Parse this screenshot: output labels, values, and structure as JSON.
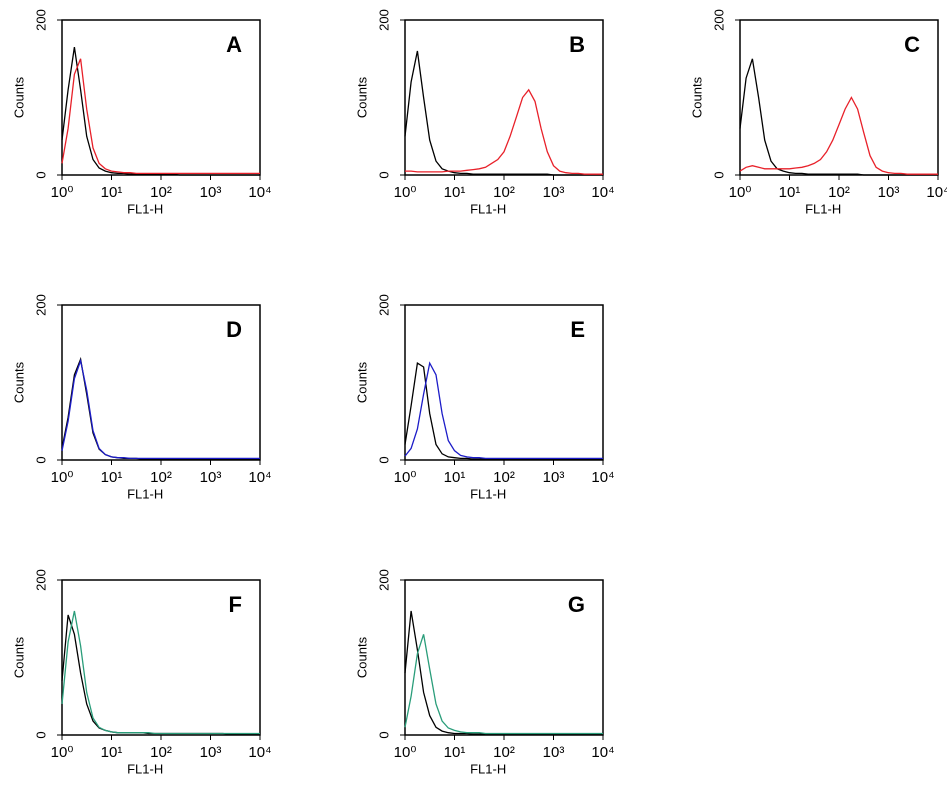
{
  "chart_data": [
    {
      "type": "line",
      "title": "A",
      "xlabel": "FL1-H",
      "ylabel": "Counts",
      "xscale": "log",
      "xlim": [
        1,
        10000
      ],
      "ylim": [
        0,
        200
      ],
      "xticks": [
        {
          "value": 1,
          "label": "10⁰"
        },
        {
          "value": 10,
          "label": "10¹"
        },
        {
          "value": 100,
          "label": "10²"
        },
        {
          "value": 1000,
          "label": "10³"
        },
        {
          "value": 10000,
          "label": "10⁴"
        }
      ],
      "yticks": [
        0,
        200
      ],
      "x": [
        1,
        1.33,
        1.78,
        2.37,
        3.16,
        4.22,
        5.62,
        7.5,
        10,
        13.3,
        17.8,
        23.7,
        31.6,
        42.2,
        56.2,
        75,
        100,
        133,
        178,
        237,
        316,
        422,
        562,
        750,
        1000,
        1334,
        1778,
        2371,
        3162,
        4217,
        5623,
        7499,
        10000
      ],
      "series": [
        {
          "color": "#000000",
          "values": [
            45,
            110,
            165,
            110,
            50,
            20,
            9,
            5,
            3,
            2,
            2,
            1,
            1,
            1,
            1,
            1,
            1,
            1,
            1,
            0,
            0,
            0,
            0,
            0,
            0,
            0,
            0,
            0,
            0,
            0,
            0,
            0,
            0
          ]
        },
        {
          "color": "#e8212a",
          "values": [
            15,
            60,
            130,
            150,
            85,
            35,
            15,
            8,
            5,
            4,
            3,
            3,
            2,
            2,
            2,
            2,
            2,
            2,
            2,
            2,
            2,
            2,
            2,
            2,
            2,
            2,
            2,
            2,
            2,
            2,
            2,
            2,
            2
          ]
        }
      ]
    },
    {
      "type": "line",
      "title": "B",
      "xlabel": "FL1-H",
      "ylabel": "Counts",
      "xscale": "log",
      "xlim": [
        1,
        10000
      ],
      "ylim": [
        0,
        200
      ],
      "xticks": [
        {
          "value": 1,
          "label": "10⁰"
        },
        {
          "value": 10,
          "label": "10¹"
        },
        {
          "value": 100,
          "label": "10²"
        },
        {
          "value": 1000,
          "label": "10³"
        },
        {
          "value": 10000,
          "label": "10⁴"
        }
      ],
      "yticks": [
        0,
        200
      ],
      "x": [
        1,
        1.33,
        1.78,
        2.37,
        3.16,
        4.22,
        5.62,
        7.5,
        10,
        13.3,
        17.8,
        23.7,
        31.6,
        42.2,
        56.2,
        75,
        100,
        133,
        178,
        237,
        316,
        422,
        562,
        750,
        1000,
        1334,
        1778,
        2371,
        3162,
        4217,
        5623,
        7499,
        10000
      ],
      "series": [
        {
          "color": "#000000",
          "values": [
            50,
            120,
            160,
            100,
            45,
            18,
            8,
            5,
            3,
            2,
            2,
            1,
            1,
            1,
            1,
            1,
            1,
            1,
            1,
            1,
            1,
            1,
            1,
            1,
            0,
            0,
            0,
            0,
            0,
            0,
            0,
            0,
            0
          ]
        },
        {
          "color": "#e8212a",
          "values": [
            5,
            5,
            4,
            4,
            4,
            4,
            4,
            5,
            5,
            5,
            6,
            7,
            8,
            10,
            15,
            20,
            30,
            50,
            75,
            100,
            110,
            95,
            60,
            30,
            12,
            5,
            3,
            2,
            2,
            1,
            1,
            1,
            1
          ]
        }
      ]
    },
    {
      "type": "line",
      "title": "C",
      "xlabel": "FL1-H",
      "ylabel": "Counts",
      "xscale": "log",
      "xlim": [
        1,
        10000
      ],
      "ylim": [
        0,
        200
      ],
      "xticks": [
        {
          "value": 1,
          "label": "10⁰"
        },
        {
          "value": 10,
          "label": "10¹"
        },
        {
          "value": 100,
          "label": "10²"
        },
        {
          "value": 1000,
          "label": "10³"
        },
        {
          "value": 10000,
          "label": "10⁴"
        }
      ],
      "yticks": [
        0,
        200
      ],
      "x": [
        1,
        1.33,
        1.78,
        2.37,
        3.16,
        4.22,
        5.62,
        7.5,
        10,
        13.3,
        17.8,
        23.7,
        31.6,
        42.2,
        56.2,
        75,
        100,
        133,
        178,
        237,
        316,
        422,
        562,
        750,
        1000,
        1334,
        1778,
        2371,
        3162,
        4217,
        5623,
        7499,
        10000
      ],
      "series": [
        {
          "color": "#000000",
          "values": [
            60,
            125,
            150,
            100,
            45,
            18,
            8,
            5,
            3,
            2,
            2,
            1,
            1,
            1,
            1,
            1,
            1,
            1,
            1,
            1,
            0,
            0,
            0,
            0,
            0,
            0,
            0,
            0,
            0,
            0,
            0,
            0,
            0
          ]
        },
        {
          "color": "#e8212a",
          "values": [
            5,
            10,
            12,
            10,
            8,
            8,
            8,
            8,
            8,
            9,
            10,
            12,
            15,
            20,
            30,
            45,
            65,
            85,
            100,
            85,
            55,
            25,
            10,
            5,
            3,
            2,
            2,
            1,
            1,
            1,
            1,
            1,
            1
          ]
        }
      ]
    },
    {
      "type": "line",
      "title": "D",
      "xlabel": "FL1-H",
      "ylabel": "Counts",
      "xscale": "log",
      "xlim": [
        1,
        10000
      ],
      "ylim": [
        0,
        200
      ],
      "xticks": [
        {
          "value": 1,
          "label": "10⁰"
        },
        {
          "value": 10,
          "label": "10¹"
        },
        {
          "value": 100,
          "label": "10²"
        },
        {
          "value": 1000,
          "label": "10³"
        },
        {
          "value": 10000,
          "label": "10⁴"
        }
      ],
      "yticks": [
        0,
        200
      ],
      "x": [
        1,
        1.33,
        1.78,
        2.37,
        3.16,
        4.22,
        5.62,
        7.5,
        10,
        13.3,
        17.8,
        23.7,
        31.6,
        42.2,
        56.2,
        75,
        100,
        133,
        178,
        237,
        316,
        422,
        562,
        750,
        1000,
        1334,
        1778,
        2371,
        3162,
        4217,
        5623,
        7499,
        10000
      ],
      "series": [
        {
          "color": "#000000",
          "values": [
            15,
            55,
            110,
            130,
            85,
            35,
            14,
            7,
            4,
            3,
            2,
            2,
            2,
            1,
            1,
            1,
            1,
            1,
            1,
            1,
            1,
            1,
            1,
            1,
            1,
            1,
            1,
            1,
            1,
            1,
            1,
            1,
            1
          ]
        },
        {
          "color": "#1c1cc8",
          "values": [
            12,
            50,
            105,
            128,
            90,
            38,
            15,
            7,
            4,
            3,
            3,
            2,
            2,
            2,
            2,
            2,
            2,
            2,
            2,
            2,
            2,
            2,
            2,
            2,
            2,
            2,
            2,
            2,
            2,
            2,
            2,
            2,
            2
          ]
        }
      ]
    },
    {
      "type": "line",
      "title": "E",
      "xlabel": "FL1-H",
      "ylabel": "Counts",
      "xscale": "log",
      "xlim": [
        1,
        10000
      ],
      "ylim": [
        0,
        200
      ],
      "xticks": [
        {
          "value": 1,
          "label": "10⁰"
        },
        {
          "value": 10,
          "label": "10¹"
        },
        {
          "value": 100,
          "label": "10²"
        },
        {
          "value": 1000,
          "label": "10³"
        },
        {
          "value": 10000,
          "label": "10⁴"
        }
      ],
      "yticks": [
        0,
        200
      ],
      "x": [
        1,
        1.33,
        1.78,
        2.37,
        3.16,
        4.22,
        5.62,
        7.5,
        10,
        13.3,
        17.8,
        23.7,
        31.6,
        42.2,
        56.2,
        75,
        100,
        133,
        178,
        237,
        316,
        422,
        562,
        750,
        1000,
        1334,
        1778,
        2371,
        3162,
        4217,
        5623,
        7499,
        10000
      ],
      "series": [
        {
          "color": "#000000",
          "values": [
            20,
            70,
            125,
            120,
            60,
            20,
            8,
            4,
            3,
            2,
            2,
            1,
            1,
            1,
            1,
            1,
            1,
            1,
            1,
            1,
            1,
            1,
            1,
            1,
            1,
            1,
            1,
            1,
            1,
            1,
            1,
            1,
            1
          ]
        },
        {
          "color": "#1c1cc8",
          "values": [
            5,
            15,
            40,
            85,
            125,
            110,
            60,
            25,
            12,
            6,
            4,
            3,
            3,
            2,
            2,
            2,
            2,
            2,
            2,
            2,
            2,
            2,
            2,
            2,
            2,
            2,
            2,
            2,
            2,
            2,
            2,
            2,
            2
          ]
        }
      ]
    },
    {
      "type": "line",
      "title": "F",
      "xlabel": "FL1-H",
      "ylabel": "Counts",
      "xscale": "log",
      "xlim": [
        1,
        10000
      ],
      "ylim": [
        0,
        200
      ],
      "xticks": [
        {
          "value": 1,
          "label": "10⁰"
        },
        {
          "value": 10,
          "label": "10¹"
        },
        {
          "value": 100,
          "label": "10²"
        },
        {
          "value": 1000,
          "label": "10³"
        },
        {
          "value": 10000,
          "label": "10⁴"
        }
      ],
      "yticks": [
        0,
        200
      ],
      "x": [
        1,
        1.33,
        1.78,
        2.37,
        3.16,
        4.22,
        5.62,
        7.5,
        10,
        13.3,
        17.8,
        23.7,
        31.6,
        42.2,
        56.2,
        75,
        100,
        133,
        178,
        237,
        316,
        422,
        562,
        750,
        1000,
        1334,
        1778,
        2371,
        3162,
        4217,
        5623,
        7499,
        10000
      ],
      "series": [
        {
          "color": "#000000",
          "values": [
            70,
            155,
            130,
            80,
            40,
            18,
            9,
            6,
            4,
            3,
            3,
            3,
            3,
            3,
            2,
            2,
            2,
            2,
            2,
            2,
            2,
            2,
            2,
            2,
            2,
            2,
            2,
            1,
            1,
            1,
            1,
            1,
            1
          ]
        },
        {
          "color": "#2a9d7a",
          "values": [
            40,
            120,
            160,
            115,
            55,
            22,
            10,
            6,
            4,
            3,
            3,
            3,
            3,
            3,
            3,
            2,
            2,
            2,
            2,
            2,
            2,
            2,
            2,
            2,
            2,
            2,
            2,
            2,
            2,
            2,
            2,
            2,
            2
          ]
        }
      ]
    },
    {
      "type": "line",
      "title": "G",
      "xlabel": "FL1-H",
      "ylabel": "Counts",
      "xscale": "log",
      "xlim": [
        1,
        10000
      ],
      "ylim": [
        0,
        200
      ],
      "xticks": [
        {
          "value": 1,
          "label": "10⁰"
        },
        {
          "value": 10,
          "label": "10¹"
        },
        {
          "value": 100,
          "label": "10²"
        },
        {
          "value": 1000,
          "label": "10³"
        },
        {
          "value": 10000,
          "label": "10⁴"
        }
      ],
      "yticks": [
        0,
        200
      ],
      "x": [
        1,
        1.33,
        1.78,
        2.37,
        3.16,
        4.22,
        5.62,
        7.5,
        10,
        13.3,
        17.8,
        23.7,
        31.6,
        42.2,
        56.2,
        75,
        100,
        133,
        178,
        237,
        316,
        422,
        562,
        750,
        1000,
        1334,
        1778,
        2371,
        3162,
        4217,
        5623,
        7499,
        10000
      ],
      "series": [
        {
          "color": "#000000",
          "values": [
            80,
            160,
            110,
            55,
            25,
            10,
            5,
            3,
            2,
            2,
            2,
            1,
            1,
            1,
            1,
            1,
            1,
            1,
            1,
            1,
            1,
            1,
            1,
            1,
            1,
            1,
            1,
            1,
            1,
            1,
            1,
            1,
            1
          ]
        },
        {
          "color": "#2a9d7a",
          "values": [
            10,
            50,
            105,
            130,
            85,
            40,
            18,
            9,
            6,
            4,
            3,
            3,
            3,
            2,
            2,
            2,
            2,
            2,
            2,
            2,
            2,
            2,
            2,
            2,
            2,
            2,
            2,
            2,
            2,
            2,
            2,
            2,
            2
          ]
        }
      ]
    }
  ]
}
